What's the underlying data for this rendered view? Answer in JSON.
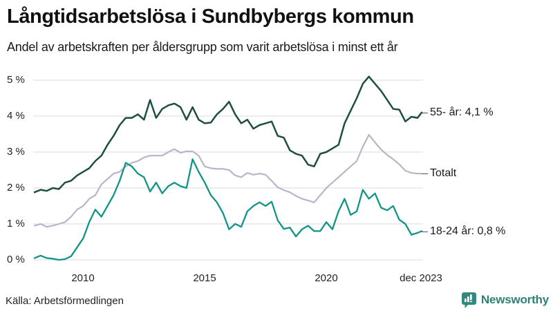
{
  "header": {
    "title": "Långtidsarbetslösa i Sundbybergs kommun",
    "subtitle": "Andel av arbetskraften per åldersgrupp som varit arbetslösa i minst ett år"
  },
  "footer": {
    "source": "Källa: Arbetsförmedlingen",
    "brand": "Newsworthy",
    "brand_color": "#2c8275"
  },
  "chart_data": {
    "type": "line",
    "title": "Långtidsarbetslösa i Sundbybergs kommun",
    "subtitle": "Andel av arbetskraften per åldersgrupp som varit arbetslösa i minst ett år",
    "grid": "horizontal",
    "legend_position": "right-end-labels",
    "y_axis": {
      "unit": "%",
      "range": [
        0,
        5
      ],
      "tick_values": [
        0,
        1,
        2,
        3,
        4,
        5
      ],
      "tick_labels": [
        "0 %",
        "1 %",
        "2 %",
        "3 %",
        "4 %",
        "5 %"
      ]
    },
    "x_axis": {
      "range": [
        2008,
        2023.92
      ],
      "ticks": [
        {
          "value": 2010,
          "label": "2010"
        },
        {
          "value": 2015,
          "label": "2015"
        },
        {
          "value": 2020,
          "label": "2020"
        },
        {
          "value": 2023.92,
          "label": "dec 2023"
        }
      ]
    },
    "x": [
      2008.0,
      2008.25,
      2008.5,
      2008.75,
      2009.0,
      2009.25,
      2009.5,
      2009.75,
      2010.0,
      2010.25,
      2010.5,
      2010.75,
      2011.0,
      2011.25,
      2011.5,
      2011.75,
      2012.0,
      2012.25,
      2012.5,
      2012.75,
      2013.0,
      2013.25,
      2013.5,
      2013.75,
      2014.0,
      2014.25,
      2014.5,
      2014.75,
      2015.0,
      2015.25,
      2015.5,
      2015.75,
      2016.0,
      2016.25,
      2016.5,
      2016.75,
      2017.0,
      2017.25,
      2017.5,
      2017.75,
      2018.0,
      2018.25,
      2018.5,
      2018.75,
      2019.0,
      2019.25,
      2019.5,
      2019.75,
      2020.0,
      2020.25,
      2020.5,
      2020.75,
      2021.0,
      2021.25,
      2021.5,
      2021.75,
      2022.0,
      2022.25,
      2022.5,
      2022.75,
      2023.0,
      2023.25,
      2023.5,
      2023.75,
      2023.92
    ],
    "series": [
      {
        "name": "55- år",
        "label": "55- år: 4,1 %",
        "last_value_label": "4,1 %",
        "color": "#1e4e41",
        "stroke_width": 2.5,
        "values": [
          1.88,
          1.95,
          1.92,
          2.0,
          1.97,
          2.15,
          2.2,
          2.35,
          2.45,
          2.55,
          2.75,
          2.9,
          3.2,
          3.45,
          3.75,
          3.95,
          3.95,
          4.05,
          3.9,
          4.45,
          3.95,
          4.2,
          4.3,
          4.35,
          4.25,
          3.9,
          4.25,
          3.9,
          3.8,
          3.82,
          4.05,
          4.2,
          4.4,
          4.05,
          3.8,
          3.9,
          3.65,
          3.75,
          3.8,
          3.85,
          3.45,
          3.4,
          3.05,
          2.95,
          2.9,
          2.65,
          2.6,
          2.95,
          3.0,
          3.1,
          3.2,
          3.8,
          4.15,
          4.5,
          4.9,
          5.1,
          4.9,
          4.7,
          4.45,
          4.2,
          4.18,
          3.85,
          3.98,
          3.95,
          4.1
        ]
      },
      {
        "name": "Totalt",
        "label": "Totalt",
        "last_value_label": "2,4 %",
        "color": "#b9b5c9",
        "stroke_width": 2.2,
        "values": [
          0.95,
          1.0,
          0.92,
          0.95,
          1.0,
          1.05,
          1.2,
          1.4,
          1.5,
          1.7,
          1.8,
          2.1,
          2.25,
          2.4,
          2.45,
          2.6,
          2.7,
          2.75,
          2.85,
          2.9,
          2.9,
          2.9,
          3.0,
          3.08,
          2.98,
          3.02,
          3.02,
          2.9,
          2.6,
          2.55,
          2.53,
          2.53,
          2.5,
          2.35,
          2.3,
          2.42,
          2.37,
          2.4,
          2.37,
          2.2,
          2.02,
          1.94,
          1.88,
          1.78,
          1.7,
          1.65,
          1.6,
          1.8,
          2.0,
          2.15,
          2.3,
          2.45,
          2.6,
          2.75,
          3.15,
          3.48,
          3.27,
          3.07,
          2.92,
          2.8,
          2.66,
          2.48,
          2.42,
          2.4,
          2.4
        ]
      },
      {
        "name": "18-24 år",
        "label": "18-24 år: 0,8 %",
        "last_value_label": "0,8 %",
        "color": "#0f9486",
        "stroke_width": 2.3,
        "values": [
          0.05,
          0.12,
          0.05,
          0.03,
          0.0,
          0.02,
          0.1,
          0.35,
          0.6,
          1.05,
          1.4,
          1.2,
          1.5,
          1.8,
          2.2,
          2.7,
          2.6,
          2.4,
          2.3,
          1.9,
          2.15,
          1.85,
          2.05,
          2.15,
          2.05,
          2.0,
          2.8,
          2.45,
          2.15,
          1.8,
          1.6,
          1.3,
          0.85,
          1.0,
          0.92,
          1.35,
          1.5,
          1.6,
          1.5,
          1.62,
          1.1,
          0.86,
          0.9,
          0.65,
          0.85,
          0.95,
          0.8,
          0.8,
          1.05,
          0.85,
          1.35,
          1.7,
          1.25,
          1.35,
          1.95,
          1.7,
          1.85,
          1.45,
          1.38,
          1.5,
          1.12,
          1.0,
          0.7,
          0.75,
          0.8
        ]
      }
    ],
    "source": "Källa: Arbetsförmedlingen"
  }
}
